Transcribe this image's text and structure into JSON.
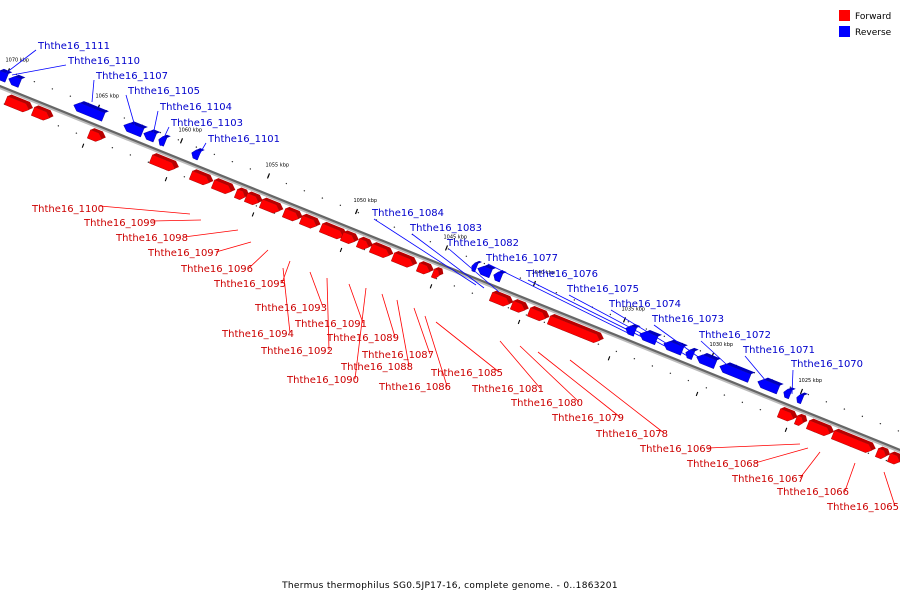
{
  "colors": {
    "forward": "#ff0000",
    "reverse": "#0000ff",
    "axis": "#888888",
    "forward_text": "#cc0000",
    "reverse_text": "#0000cc"
  },
  "legend": [
    {
      "label": "Forward",
      "color": "#ff0000"
    },
    {
      "label": "Reverse",
      "color": "#0000ff"
    }
  ],
  "caption": "Thermus thermophilus SG0.5JP17-16, complete genome. - 0..1863201",
  "ticks": [
    "1070 kbp",
    "1065 kbp",
    "1060 kbp",
    "1055 kbp",
    "1050 kbp",
    "1045 kbp",
    "1040 kbp",
    "1035 kbp",
    "1030 kbp",
    "1025 kbp"
  ],
  "reverse_genes": [
    "Ththe16_1111",
    "Ththe16_1110",
    "Ththe16_1107",
    "Ththe16_1105",
    "Ththe16_1104",
    "Ththe16_1103",
    "Ththe16_1101",
    "Ththe16_1084",
    "Ththe16_1083",
    "Ththe16_1082",
    "Ththe16_1077",
    "Ththe16_1076",
    "Ththe16_1075",
    "Ththe16_1074",
    "Ththe16_1073",
    "Ththe16_1072",
    "Ththe16_1071",
    "Ththe16_1070"
  ],
  "forward_genes": [
    "Ththe16_1100",
    "Ththe16_1099",
    "Ththe16_1098",
    "Ththe16_1097",
    "Ththe16_1096",
    "Ththe16_1095",
    "Ththe16_1094",
    "Ththe16_1093",
    "Ththe16_1092",
    "Ththe16_1091",
    "Ththe16_1090",
    "Ththe16_1089",
    "Ththe16_1088",
    "Ththe16_1087",
    "Ththe16_1086",
    "Ththe16_1085",
    "Ththe16_1081",
    "Ththe16_1080",
    "Ththe16_1079",
    "Ththe16_1078",
    "Ththe16_1069",
    "Ththe16_1068",
    "Ththe16_1067",
    "Ththe16_1066",
    "Ththe16_1065"
  ]
}
